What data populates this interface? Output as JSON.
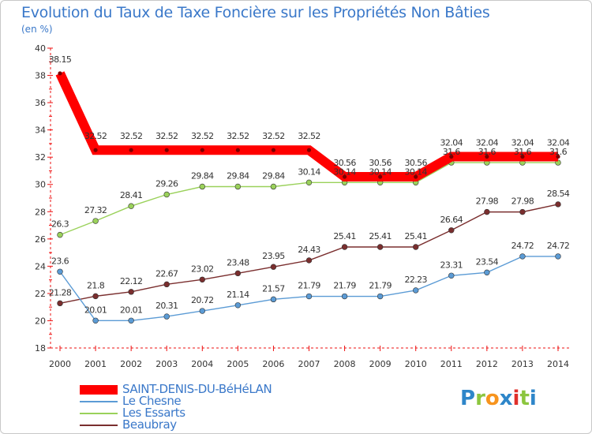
{
  "chart_data": {
    "type": "line",
    "title": "Evolution du Taux de Taxe Foncière sur les Propriétés Non Bâties",
    "ylabel": "(en %)",
    "xlabel": "",
    "ylim": [
      18,
      40
    ],
    "y_ticks": [
      "18",
      "20",
      "22",
      "24",
      "26",
      "28",
      "30",
      "32",
      "34",
      "36",
      "38",
      "40"
    ],
    "categories": [
      "2000",
      "2001",
      "2002",
      "2003",
      "2004",
      "2005",
      "2006",
      "2007",
      "2008",
      "2009",
      "2010",
      "2011",
      "2012",
      "2013",
      "2014"
    ],
    "grid": false,
    "legend_position": "bottom-left",
    "series": [
      {
        "name": "SAINT-DENIS-DU-BéHéLAN",
        "color": "#ff0000",
        "values": [
          38.15,
          32.52,
          32.52,
          32.52,
          32.52,
          32.52,
          32.52,
          32.52,
          30.56,
          30.56,
          30.56,
          32.04,
          32.04,
          32.04,
          32.04
        ],
        "labels": [
          "38.15",
          "32.52",
          "32.52",
          "32.52",
          "32.52",
          "32.52",
          "32.52",
          "32.52",
          "30.56",
          "30.56",
          "30.56",
          "32.04",
          "32.04",
          "32.04",
          "32.04"
        ]
      },
      {
        "name": "Le Chesne",
        "color": "#5b9bd5",
        "values": [
          23.6,
          20.01,
          20.01,
          20.31,
          20.72,
          21.14,
          21.57,
          21.79,
          21.79,
          21.79,
          22.23,
          23.31,
          23.54,
          24.72,
          24.72
        ],
        "labels": [
          "23.6",
          "20.01",
          "20.01",
          "20.31",
          "20.72",
          "21.14",
          "21.57",
          "21.79",
          "21.79",
          "21.79",
          "22.23",
          "23.31",
          "23.54",
          "24.72",
          "24.72"
        ]
      },
      {
        "name": "Les Essarts",
        "color": "#9ad15a",
        "values": [
          26.3,
          27.32,
          28.41,
          29.26,
          29.84,
          29.84,
          29.84,
          30.14,
          30.14,
          30.14,
          30.14,
          31.6,
          31.6,
          31.6,
          31.6
        ],
        "labels": [
          "26.3",
          "27.32",
          "28.41",
          "29.26",
          "29.84",
          "29.84",
          "29.84",
          "30.14",
          "30.14",
          "30.14",
          "30.14",
          "31.6",
          "31.6",
          "31.6",
          "31.6"
        ]
      },
      {
        "name": "Beaubray",
        "color": "#7a2e2e",
        "values": [
          21.28,
          21.8,
          22.12,
          22.67,
          23.02,
          23.48,
          23.95,
          24.43,
          25.41,
          25.41,
          25.41,
          26.64,
          27.98,
          27.98,
          28.54
        ],
        "labels": [
          "21.28",
          "21.8",
          "22.12",
          "22.67",
          "23.02",
          "23.48",
          "23.95",
          "24.43",
          "25.41",
          "25.41",
          "25.41",
          "26.64",
          "27.98",
          "27.98",
          "28.54"
        ]
      }
    ]
  },
  "logo": {
    "letters": [
      "P",
      "r",
      "o",
      "x",
      "i",
      "t",
      "i"
    ],
    "colors": [
      "#2e86c9",
      "#8cc63f",
      "#f7941d",
      "#2e86c9",
      "#e0302b",
      "#8cc63f",
      "#2e86c9"
    ]
  }
}
